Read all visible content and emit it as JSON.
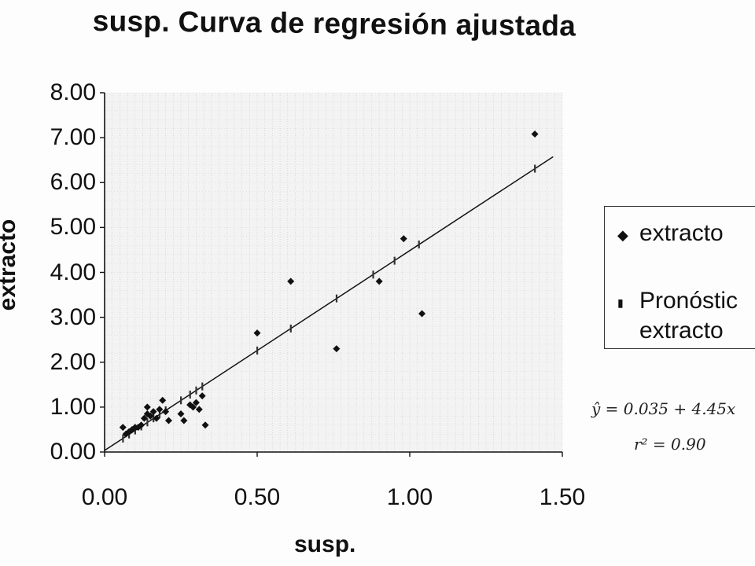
{
  "chart_data": {
    "type": "scatter",
    "title": "susp. Curva de regresión ajustada",
    "xlabel": "susp.",
    "ylabel": "extracto",
    "xlim": [
      0,
      1.5
    ],
    "ylim": [
      0,
      8
    ],
    "x_ticks": [
      "0.00",
      "0.50",
      "1.00",
      "1.50"
    ],
    "y_ticks": [
      "0.00",
      "1.00",
      "2.00",
      "3.00",
      "4.00",
      "5.00",
      "6.00",
      "7.00",
      "8.00"
    ],
    "grid": true,
    "legend_position": "right",
    "series": [
      {
        "name": "extracto",
        "marker": "diamond",
        "points": [
          [
            0.06,
            0.55
          ],
          [
            0.07,
            0.4
          ],
          [
            0.08,
            0.45
          ],
          [
            0.09,
            0.5
          ],
          [
            0.1,
            0.55
          ],
          [
            0.11,
            0.55
          ],
          [
            0.12,
            0.6
          ],
          [
            0.13,
            0.75
          ],
          [
            0.14,
            1.0
          ],
          [
            0.14,
            0.85
          ],
          [
            0.15,
            0.8
          ],
          [
            0.16,
            0.9
          ],
          [
            0.17,
            0.75
          ],
          [
            0.18,
            0.95
          ],
          [
            0.19,
            1.15
          ],
          [
            0.2,
            0.9
          ],
          [
            0.21,
            0.7
          ],
          [
            0.25,
            0.85
          ],
          [
            0.26,
            0.7
          ],
          [
            0.28,
            1.05
          ],
          [
            0.29,
            1.0
          ],
          [
            0.3,
            1.1
          ],
          [
            0.31,
            0.95
          ],
          [
            0.32,
            1.25
          ],
          [
            0.33,
            0.6
          ],
          [
            0.5,
            2.65
          ],
          [
            0.61,
            3.8
          ],
          [
            0.76,
            2.3
          ],
          [
            0.9,
            3.8
          ],
          [
            0.98,
            4.75
          ],
          [
            1.04,
            3.08
          ],
          [
            1.41,
            7.08
          ]
        ]
      },
      {
        "name": "Pronóstico extracto",
        "marker": "bar",
        "points": [
          [
            0.06,
            0.3
          ],
          [
            0.08,
            0.39
          ],
          [
            0.1,
            0.48
          ],
          [
            0.12,
            0.57
          ],
          [
            0.14,
            0.66
          ],
          [
            0.16,
            0.75
          ],
          [
            0.18,
            0.84
          ],
          [
            0.2,
            0.93
          ],
          [
            0.25,
            1.15
          ],
          [
            0.28,
            1.28
          ],
          [
            0.3,
            1.37
          ],
          [
            0.32,
            1.46
          ],
          [
            0.5,
            2.26
          ],
          [
            0.61,
            2.75
          ],
          [
            0.76,
            3.42
          ],
          [
            0.88,
            3.95
          ],
          [
            0.95,
            4.26
          ],
          [
            1.03,
            4.62
          ],
          [
            1.41,
            6.31
          ]
        ]
      },
      {
        "name": "fit-line",
        "type": "line",
        "intercept": 0.035,
        "slope": 4.45,
        "x_range": [
          0.0,
          1.47
        ]
      }
    ]
  },
  "legend": {
    "entries": [
      "extracto",
      "Pronóstic",
      "extracto"
    ]
  },
  "annotation": {
    "equation": "ŷ = 0.035 + 4.45x",
    "r2": "r² = 0.90"
  }
}
